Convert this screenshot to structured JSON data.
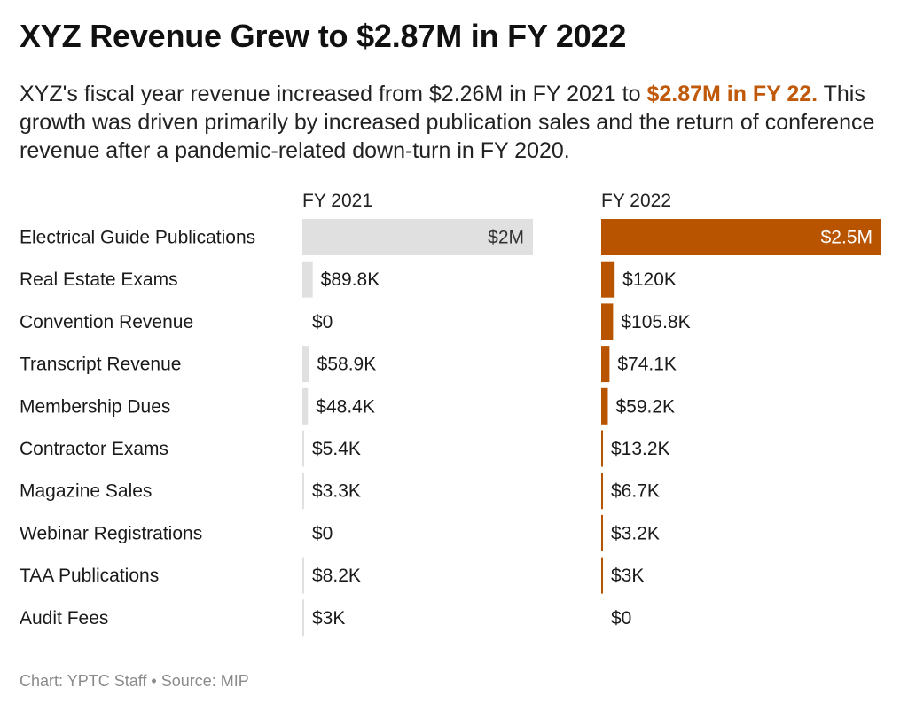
{
  "title": "XYZ Revenue Grew to $2.87M in FY 2022",
  "subtitle": {
    "part1": "XYZ's fiscal year revenue increased from $2.26M in FY 2021 to ",
    "highlight": "$2.87M in FY 22.",
    "part2": " This growth was driven primarily by increased publication sales and the return of conference revenue after a pandemic-related down-turn in FY 2020."
  },
  "colors": {
    "fy2021": "#e0e0e0",
    "fy2022": "#b85400",
    "highlight": "#c0590a",
    "text": "#1a1a1a",
    "footer": "#8a8a8a"
  },
  "chart_data": {
    "type": "bar",
    "orientation": "horizontal",
    "title": "XYZ Revenue Grew to $2.87M in FY 2022",
    "xlabel": "",
    "ylabel": "",
    "legend": "column-headers",
    "grid": false,
    "categories": [
      "Electrical Guide Publications",
      "Real Estate Exams",
      "Convention Revenue",
      "Transcript Revenue",
      "Membership Dues",
      "Contractor Exams",
      "Magazine Sales",
      "Webinar Registrations",
      "TAA Publications",
      "Audit Fees"
    ],
    "series": [
      {
        "name": "FY 2021",
        "values": [
          2000000,
          89800,
          0,
          58900,
          48400,
          5400,
          3300,
          0,
          8200,
          3000
        ],
        "labels": [
          "$2M",
          "$89.8K",
          "$0",
          "$58.9K",
          "$48.4K",
          "$5.4K",
          "$3.3K",
          "$0",
          "$8.2K",
          "$3K"
        ],
        "xlim": [
          0,
          2000000
        ]
      },
      {
        "name": "FY 2022",
        "values": [
          2500000,
          120000,
          105800,
          74100,
          59200,
          13200,
          6700,
          3200,
          3000,
          0
        ],
        "labels": [
          "$2.5M",
          "$120K",
          "$105.8K",
          "$74.1K",
          "$59.2K",
          "$13.2K",
          "$6.7K",
          "$3.2K",
          "$3K",
          "$0"
        ],
        "xlim": [
          0,
          2500000
        ]
      }
    ]
  },
  "footer": {
    "credit": "Chart: YPTC Staff",
    "separator": " • ",
    "source": "Source: MIP"
  }
}
